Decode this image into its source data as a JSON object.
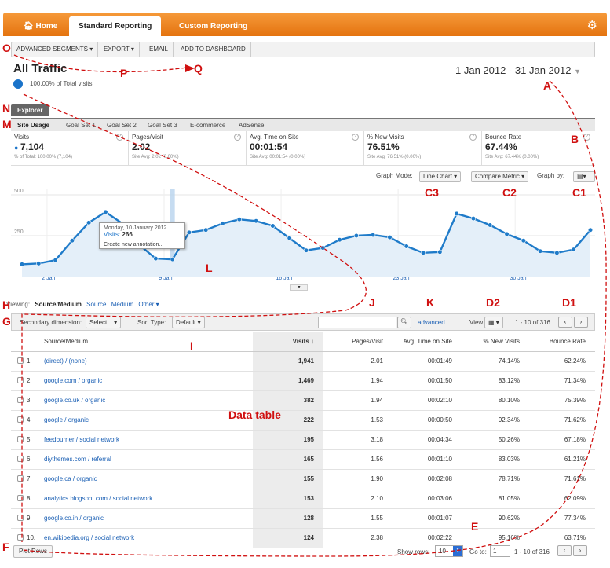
{
  "nav": {
    "home": "Home",
    "standard": "Standard Reporting",
    "custom": "Custom Reporting"
  },
  "actions": {
    "segments": "ADVANCED SEGMENTS ▾",
    "export": "EXPORT ▾",
    "email": "EMAIL",
    "dashboard": "ADD TO DASHBOARD"
  },
  "page": {
    "title": "All Traffic",
    "total": "100.00% of Total visits",
    "date_range": "1 Jan 2012 - 31 Jan 2012"
  },
  "explorer": "Explorer",
  "subtabs": [
    "Site Usage",
    "Goal Set 1",
    "Goal Set 2",
    "Goal Set 3",
    "E-commerce",
    "AdSense"
  ],
  "metrics": [
    {
      "name": "Visits",
      "value": "7,104",
      "sub": "% of Total: 100.00% (7,104)"
    },
    {
      "name": "Pages/Visit",
      "value": "2.02",
      "sub": "Site Avg: 2.02 (0.00%)"
    },
    {
      "name": "Avg. Time on Site",
      "value": "00:01:54",
      "sub": "Site Avg: 00:01:54 (0.00%)"
    },
    {
      "name": "% New Visits",
      "value": "76.51%",
      "sub": "Site Avg: 76.51% (0.00%)"
    },
    {
      "name": "Bounce Rate",
      "value": "67.44%",
      "sub": "Site Avg: 67.44% (0.00%)"
    }
  ],
  "graph": {
    "mode_label": "Graph Mode:",
    "mode": "Line Chart ▾",
    "compare": "Compare Metric ▾",
    "by_label": "Graph by:"
  },
  "tooltip": {
    "date": "Monday, 10 January 2012",
    "metric": "Visits:",
    "value": "266",
    "action": "Create new annotation..."
  },
  "chart_data": {
    "type": "line",
    "series": [
      {
        "values": [
          75,
          80,
          100,
          220,
          330,
          395,
          325,
          195,
          110,
          105,
          270,
          285,
          325,
          350,
          340,
          310,
          235,
          160,
          175,
          225,
          250,
          255,
          240,
          185,
          145,
          150,
          385,
          355,
          315,
          260,
          220,
          155,
          145,
          165,
          285
        ]
      }
    ],
    "xticks": [
      "2 Jan",
      "9 Jan",
      "16 Jan",
      "23 Jan",
      "30 Jan"
    ],
    "yticks": [
      "500",
      "250"
    ],
    "ylim": [
      0,
      500
    ],
    "color": "#1f7bc9"
  },
  "viewing": {
    "label": "Viewing:",
    "options": [
      "Source/Medium",
      "Source",
      "Medium",
      "Other ▾"
    ]
  },
  "toolbar": {
    "secondary_label": "Secondary dimension:",
    "secondary_value": "Select... ▾",
    "sort_label": "Sort Type:",
    "sort_value": "Default ▾",
    "advanced": "advanced",
    "view_label": "View:",
    "range": "1 - 10 of 316"
  },
  "table": {
    "headers": [
      "Source/Medium",
      "Visits",
      "Pages/Visit",
      "Avg. Time on Site",
      "% New Visits",
      "Bounce Rate"
    ],
    "rows": [
      [
        "1.",
        "(direct) / (none)",
        "1,941",
        "2.01",
        "00:01:49",
        "74.14%",
        "62.24%"
      ],
      [
        "2.",
        "google.com / organic",
        "1,469",
        "1.94",
        "00:01:50",
        "83.12%",
        "71.34%"
      ],
      [
        "3.",
        "google.co.uk / organic",
        "382",
        "1.94",
        "00:02:10",
        "80.10%",
        "75.39%"
      ],
      [
        "4.",
        "google / organic",
        "222",
        "1.53",
        "00:00:50",
        "92.34%",
        "71.62%"
      ],
      [
        "5.",
        "feedburner / social network",
        "195",
        "3.18",
        "00:04:34",
        "50.26%",
        "67.18%"
      ],
      [
        "6.",
        "diythemes.com / referral",
        "165",
        "1.56",
        "00:01:10",
        "83.03%",
        "61.21%"
      ],
      [
        "7.",
        "google.ca / organic",
        "155",
        "1.90",
        "00:02:08",
        "78.71%",
        "71.61%"
      ],
      [
        "8.",
        "analytics.blogspot.com / social network",
        "153",
        "2.10",
        "00:03:06",
        "81.05%",
        "62.09%"
      ],
      [
        "9.",
        "google.co.in / organic",
        "128",
        "1.55",
        "00:01:07",
        "90.62%",
        "77.34%"
      ],
      [
        "10.",
        "en.wikipedia.org / social network",
        "124",
        "2.38",
        "00:02:22",
        "95.16%",
        "63.71%"
      ]
    ]
  },
  "footer": {
    "plot": "Plot Rows",
    "show_rows": "Show rows:",
    "rows_value": "10",
    "goto": "Go to:",
    "goto_value": "1",
    "range": "1 - 10 of 316"
  },
  "annotations": {
    "O": "O",
    "P": "P",
    "Q": "Q",
    "A": "A",
    "B": "B",
    "N": "N",
    "M": "M",
    "C3": "C3",
    "C2": "C2",
    "C1": "C1",
    "L": "L",
    "H": "H",
    "J": "J",
    "K": "K",
    "D2": "D2",
    "D1": "D1",
    "G": "G",
    "I": "I",
    "datatable": "Data table",
    "E": "E",
    "F": "F"
  }
}
